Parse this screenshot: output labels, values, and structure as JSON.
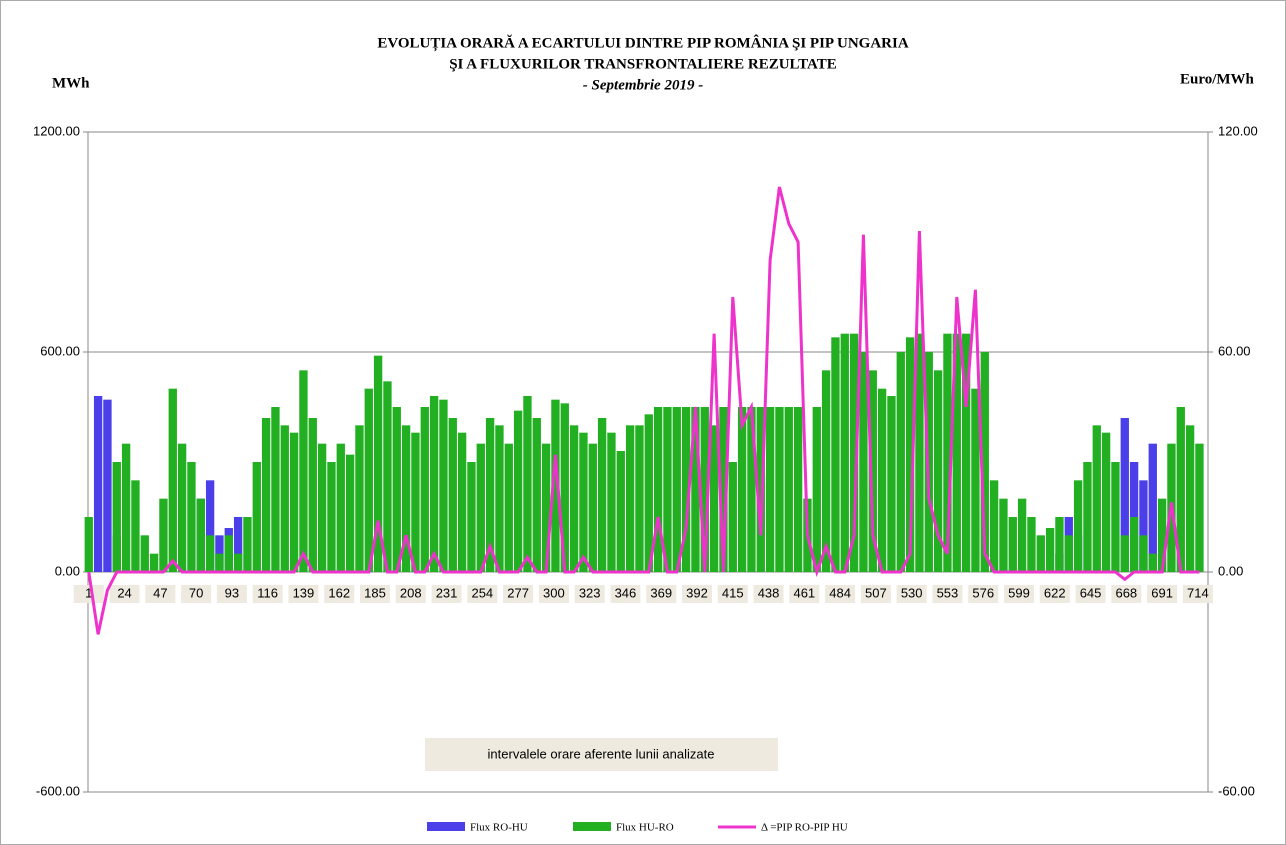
{
  "chart_data": {
    "type": "bar-line",
    "title": "EVOLUȚIA  ORARĂ A ECARTULUI  DINTRE PIP ROMÂNIA ŞI PIP UNGARIA",
    "title2": "ŞI A FLUXURILOR TRANSFRONTALIERE REZULTATE",
    "subtitle": "- Septembrie 2019 -",
    "y_label": "MWh",
    "y2_label": "Euro/MWh",
    "annotation": "intervalele orare aferente lunii analizate",
    "xlim": [
      0.5,
      720.5
    ],
    "xticks": [
      1,
      24,
      47,
      70,
      93,
      116,
      139,
      162,
      185,
      208,
      231,
      254,
      277,
      300,
      323,
      346,
      369,
      392,
      415,
      438,
      461,
      484,
      507,
      530,
      553,
      576,
      599,
      622,
      645,
      668,
      691,
      714
    ],
    "ylim": [
      -600,
      1200
    ],
    "yticks": [
      {
        "value": -600,
        "label": "-600.00"
      },
      {
        "value": 0,
        "label": "0.00"
      },
      {
        "value": 600,
        "label": "600.00"
      },
      {
        "value": 1200,
        "label": "1200.00"
      }
    ],
    "y2lim": [
      -60,
      120
    ],
    "y2ticks": [
      {
        "value": -60,
        "label": "-60.00"
      },
      {
        "value": 0,
        "label": "0.00"
      },
      {
        "value": 60,
        "label": "60.00"
      },
      {
        "value": 120,
        "label": "120.00"
      }
    ],
    "grid": true,
    "x": [
      1,
      7,
      13,
      19,
      25,
      31,
      37,
      43,
      49,
      55,
      61,
      67,
      73,
      79,
      85,
      91,
      97,
      103,
      109,
      115,
      121,
      127,
      133,
      139,
      145,
      151,
      157,
      163,
      169,
      175,
      181,
      187,
      193,
      199,
      205,
      211,
      217,
      223,
      229,
      235,
      241,
      247,
      253,
      259,
      265,
      271,
      277,
      283,
      289,
      295,
      301,
      307,
      313,
      319,
      325,
      331,
      337,
      343,
      349,
      355,
      361,
      367,
      373,
      379,
      385,
      391,
      397,
      403,
      409,
      415,
      421,
      427,
      433,
      439,
      445,
      451,
      457,
      463,
      469,
      475,
      481,
      487,
      493,
      499,
      505,
      511,
      517,
      523,
      529,
      535,
      541,
      547,
      553,
      559,
      565,
      571,
      577,
      583,
      589,
      595,
      601,
      607,
      613,
      619,
      625,
      631,
      637,
      643,
      649,
      655,
      661,
      667,
      673,
      679,
      685,
      691,
      697,
      703,
      709,
      715
    ],
    "series": [
      {
        "name": "Flux RO-HU",
        "color": "#4a3fe8",
        "values": [
          0,
          480,
          470,
          100,
          0,
          0,
          0,
          0,
          0,
          0,
          0,
          0,
          200,
          250,
          100,
          120,
          150,
          0,
          0,
          0,
          0,
          0,
          0,
          0,
          0,
          0,
          0,
          0,
          0,
          0,
          0,
          0,
          0,
          0,
          0,
          0,
          0,
          0,
          0,
          0,
          0,
          0,
          0,
          0,
          0,
          0,
          0,
          0,
          0,
          0,
          0,
          0,
          0,
          0,
          0,
          0,
          0,
          0,
          0,
          0,
          0,
          0,
          0,
          0,
          0,
          0,
          0,
          0,
          0,
          0,
          0,
          0,
          0,
          0,
          0,
          0,
          0,
          0,
          0,
          0,
          0,
          0,
          0,
          0,
          0,
          0,
          0,
          0,
          0,
          0,
          0,
          0,
          0,
          0,
          0,
          0,
          0,
          0,
          0,
          0,
          0,
          0,
          0,
          0,
          50,
          150,
          100,
          0,
          0,
          0,
          0,
          420,
          300,
          250,
          350,
          0,
          0,
          0,
          0,
          0
        ]
      },
      {
        "name": "Flux HU-RO",
        "color": "#22b022",
        "values": [
          150,
          0,
          0,
          300,
          350,
          250,
          100,
          50,
          200,
          500,
          350,
          300,
          200,
          100,
          50,
          100,
          50,
          150,
          300,
          420,
          450,
          400,
          380,
          550,
          420,
          350,
          300,
          350,
          320,
          400,
          500,
          590,
          520,
          450,
          400,
          380,
          450,
          480,
          470,
          420,
          380,
          300,
          350,
          420,
          400,
          350,
          440,
          480,
          420,
          350,
          470,
          460,
          400,
          380,
          350,
          420,
          380,
          330,
          400,
          400,
          430,
          450,
          450,
          450,
          450,
          450,
          450,
          400,
          450,
          300,
          450,
          450,
          450,
          450,
          450,
          450,
          450,
          200,
          450,
          550,
          640,
          650,
          650,
          600,
          550,
          500,
          480,
          600,
          640,
          650,
          600,
          550,
          650,
          650,
          650,
          500,
          600,
          250,
          200,
          150,
          200,
          150,
          100,
          120,
          150,
          100,
          250,
          300,
          400,
          380,
          300,
          100,
          150,
          100,
          50,
          200,
          350,
          450,
          400,
          350
        ]
      },
      {
        "name": "Δ =PIP RO-PIP HU",
        "color": "#ee33cc",
        "axis": "y2",
        "values": [
          0,
          -17,
          -5,
          0,
          0,
          0,
          0,
          0,
          0,
          3,
          0,
          0,
          0,
          0,
          0,
          0,
          0,
          0,
          0,
          0,
          0,
          0,
          0,
          5,
          0,
          0,
          0,
          0,
          0,
          0,
          0,
          14,
          0,
          0,
          10,
          0,
          0,
          5,
          0,
          0,
          0,
          0,
          0,
          7,
          0,
          0,
          0,
          4,
          0,
          0,
          32,
          0,
          0,
          4,
          0,
          0,
          0,
          0,
          0,
          0,
          0,
          15,
          0,
          0,
          12,
          45,
          0,
          65,
          0,
          75,
          40,
          45,
          10,
          85,
          105,
          95,
          90,
          10,
          0,
          7,
          0,
          0,
          10,
          92,
          10,
          0,
          0,
          0,
          5,
          93,
          20,
          10,
          5,
          75,
          45,
          77,
          5,
          0,
          0,
          0,
          0,
          0,
          0,
          0,
          0,
          0,
          0,
          0,
          0,
          0,
          0,
          -2,
          0,
          0,
          0,
          0,
          19,
          0,
          0,
          0
        ]
      }
    ]
  }
}
